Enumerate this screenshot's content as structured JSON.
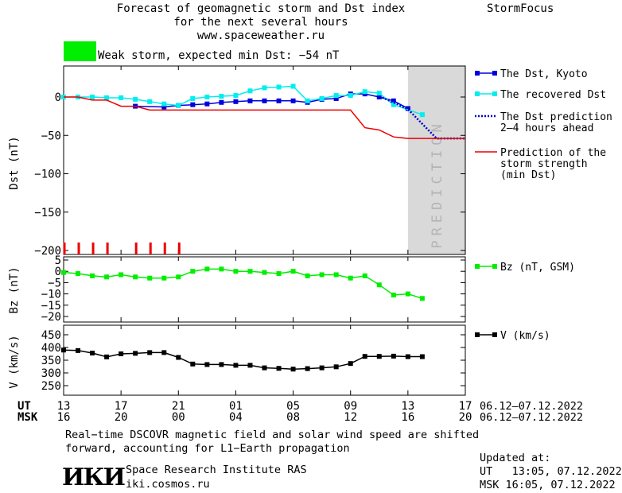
{
  "header": {
    "title_line1": "Forecast of geomagnetic storm and Dst index",
    "title_line2": "for the next several hours",
    "title_line3": "www.spaceweather.ru",
    "brand": "StormFocus",
    "storm_text": "Weak storm, expected min Dst: −54 nT",
    "storm_color": "#00ee00"
  },
  "chart_data": [
    {
      "type": "line",
      "ylabel": "Dst (nT)",
      "ylim": [
        -200,
        40
      ],
      "yticks": [
        "0",
        "−50",
        "−100",
        "−150",
        "−200"
      ],
      "yticks_values": [
        0,
        -50,
        -100,
        -150,
        -200
      ],
      "prediction_label": "PREDICTION",
      "prediction_region_hours": [
        24,
        28
      ],
      "series": [
        {
          "name": "The Dst, Kyoto",
          "color": "#0000dd",
          "x": [
            5,
            7,
            8,
            9,
            10,
            11,
            12,
            13,
            14,
            15,
            16,
            17,
            18,
            19,
            20,
            21,
            22,
            23,
            24
          ],
          "y": [
            -12,
            -13,
            -11,
            -10,
            -9,
            -7,
            -6,
            -5,
            -5,
            -5,
            -5,
            -7,
            -3,
            -2,
            4,
            4,
            0,
            -5,
            -15
          ]
        },
        {
          "name": "The recovered Dst",
          "color": "#00eeee",
          "x": [
            0,
            1,
            2,
            3,
            4,
            5,
            6,
            7,
            8,
            9,
            10,
            11,
            12,
            13,
            14,
            15,
            16,
            17,
            18,
            19,
            20,
            21,
            22,
            23,
            25
          ],
          "y": [
            0,
            0,
            0,
            -1,
            -1,
            -3,
            -6,
            -9,
            -11,
            -2,
            0,
            1,
            2,
            8,
            12,
            13,
            14,
            -5,
            -2,
            2,
            2,
            7,
            5,
            -10,
            -23
          ]
        },
        {
          "name": "The Dst prediction 2–4 hours ahead",
          "color": "#0000cc",
          "x": [
            22,
            23,
            24,
            25,
            26,
            28
          ],
          "y": [
            1,
            -7,
            -16,
            -35,
            -54,
            -54
          ]
        },
        {
          "name": "Prediction of the storm strength (min Dst)",
          "color": "#ee0000",
          "x": [
            0,
            1,
            2,
            3,
            4,
            5,
            6,
            7,
            8,
            9,
            10,
            11,
            12,
            13,
            14,
            15,
            16,
            17,
            18,
            19,
            20,
            21,
            22,
            23,
            24,
            25,
            26,
            27,
            28
          ],
          "y": [
            0,
            0,
            -4,
            -4,
            -12,
            -12,
            -17,
            -17,
            -17,
            -17,
            -17,
            -17,
            -17,
            -17,
            -17,
            -17,
            -17,
            -17,
            -17,
            -17,
            -17,
            -40,
            -43,
            -52,
            -54,
            -54,
            -54,
            -54,
            -54
          ]
        }
      ],
      "storm_marks_hours": [
        0,
        1,
        2,
        3,
        5,
        6,
        7,
        8
      ],
      "legend": "right"
    },
    {
      "type": "line",
      "ylabel": "Bz (nT)",
      "ylim": [
        -22,
        6
      ],
      "yticks": [
        "5",
        "0",
        "−5",
        "−10",
        "−15",
        "−20"
      ],
      "yticks_values": [
        5,
        0,
        -5,
        -10,
        -15,
        -20
      ],
      "series": [
        {
          "name": "Bz (nT, GSM)",
          "color": "#00ee00",
          "x": [
            0,
            1,
            2,
            3,
            4,
            5,
            6,
            7,
            8,
            9,
            10,
            11,
            12,
            13,
            14,
            15,
            16,
            17,
            18,
            19,
            20,
            21,
            22,
            23,
            24,
            25
          ],
          "y": [
            -0.5,
            -1,
            -2,
            -2.5,
            -1.5,
            -2.5,
            -3,
            -3,
            -2.5,
            0,
            1,
            1,
            0,
            0,
            -0.5,
            -1,
            0,
            -2,
            -1.5,
            -1.5,
            -3,
            -2,
            -6,
            -10.5,
            -10,
            -12
          ]
        }
      ],
      "legend": "right"
    },
    {
      "type": "line",
      "ylabel": "V (km/s)",
      "ylim": [
        220,
        480
      ],
      "yticks": [
        "450",
        "400",
        "350",
        "300",
        "250"
      ],
      "yticks_values": [
        450,
        400,
        350,
        300,
        250
      ],
      "series": [
        {
          "name": "V (km/s)",
          "color": "#000000",
          "x": [
            0,
            1,
            2,
            3,
            4,
            5,
            6,
            7,
            8,
            9,
            10,
            11,
            12,
            13,
            14,
            15,
            16,
            17,
            18,
            19,
            20,
            21,
            22,
            23,
            24,
            25
          ],
          "y": [
            390,
            388,
            378,
            363,
            375,
            377,
            380,
            380,
            361,
            335,
            333,
            333,
            330,
            330,
            320,
            318,
            315,
            317,
            320,
            324,
            337,
            365,
            365,
            366,
            364,
            364
          ]
        }
      ],
      "legend": "right"
    }
  ],
  "time_axis": {
    "ut_label": "UT",
    "msk_label": "MSK",
    "ut_ticks": [
      "13",
      "17",
      "21",
      "01",
      "05",
      "09",
      "13",
      "17"
    ],
    "msk_ticks": [
      "16",
      "20",
      "00",
      "04",
      "08",
      "12",
      "16",
      "20"
    ],
    "date_range_ut": "06.12–07.12.2022",
    "date_range_msk": "06.12–07.12.2022"
  },
  "footer": {
    "note_line1": "Real−time DSCOVR magnetic field and solar wind speed are shifted",
    "note_line2": "forward, accounting for L1−Earth propagation",
    "logo_text": "ИКИ",
    "institute": "Space Research Institute RAS",
    "site": "iki.cosmos.ru",
    "updated_label": "Updated at:",
    "updated_ut": "UT   13:05, 07.12.2022",
    "updated_msk": "MSK 16:05, 07.12.2022"
  }
}
